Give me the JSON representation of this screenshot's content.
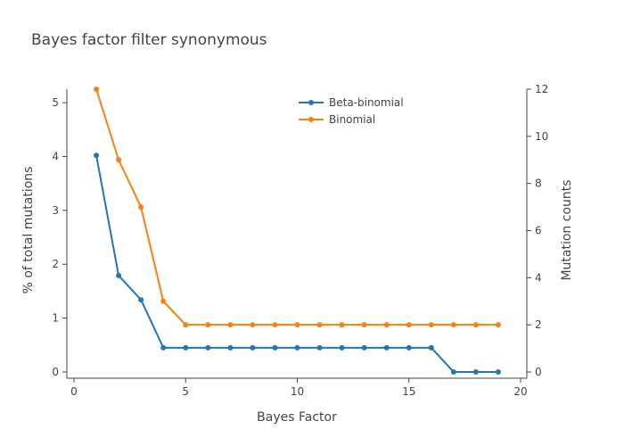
{
  "chart_data": {
    "type": "line",
    "title": "Bayes factor filter synonymous",
    "xlabel": "Bayes Factor",
    "ylabel": "% of total mutations",
    "y2label": "Mutation counts",
    "xlim": [
      0,
      20
    ],
    "ylim": [
      0,
      5.25
    ],
    "y2lim": [
      0,
      12
    ],
    "x_ticks": [
      0,
      5,
      10,
      15,
      20
    ],
    "y_ticks": [
      0,
      1,
      2,
      3,
      4,
      5
    ],
    "y2_ticks": [
      0,
      2,
      4,
      6,
      8,
      10,
      12
    ],
    "grid": false,
    "legend_position": "top-right",
    "x": [
      1,
      2,
      3,
      4,
      5,
      6,
      7,
      8,
      9,
      10,
      11,
      12,
      13,
      14,
      15,
      16,
      17,
      18,
      19
    ],
    "series": [
      {
        "name": "Beta-binomial",
        "axis": "y",
        "color": "#1f77b4",
        "values": [
          4.02,
          1.79,
          1.34,
          0.45,
          0.45,
          0.45,
          0.45,
          0.45,
          0.45,
          0.45,
          0.45,
          0.45,
          0.45,
          0.45,
          0.45,
          0.45,
          0,
          0,
          0
        ]
      },
      {
        "name": "Binomial",
        "axis": "y2",
        "color": "#ff7f0e",
        "values": [
          12,
          9,
          7,
          3,
          2,
          2,
          2,
          2,
          2,
          2,
          2,
          2,
          2,
          2,
          2,
          2,
          2,
          2,
          2
        ]
      }
    ]
  }
}
